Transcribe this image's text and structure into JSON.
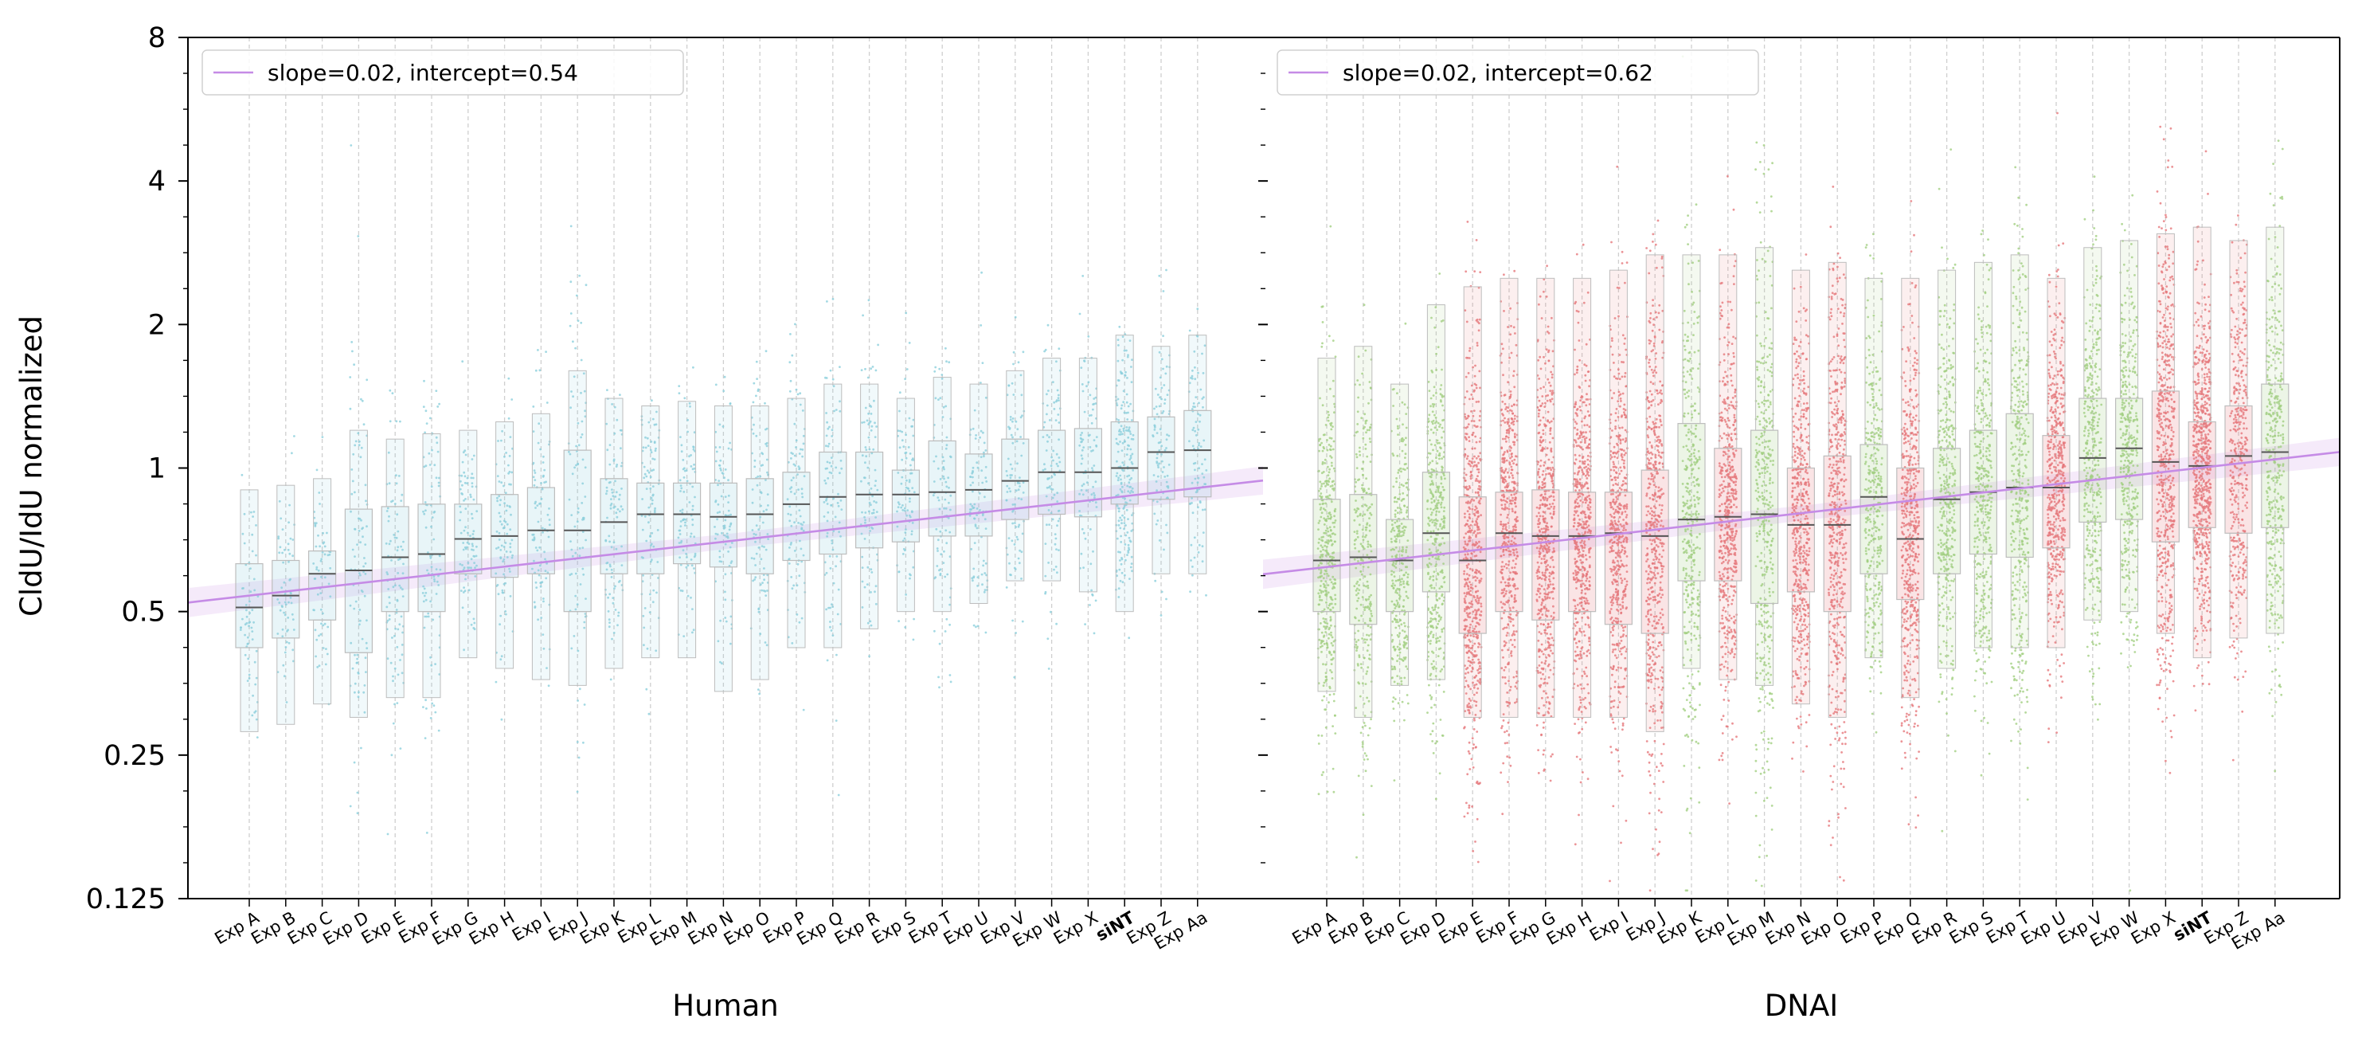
{
  "figure": {
    "ylabel": "CldU/IdU normalized"
  },
  "chart_data": [
    {
      "type": "box",
      "panel": "left",
      "xlabel": "Human",
      "y_scale": "log2",
      "ylim": [
        0.125,
        8
      ],
      "y_ticks": [
        0.125,
        0.25,
        0.5,
        1,
        2,
        4,
        8
      ],
      "y_tick_labels": [
        "0.125",
        "0.25",
        "0.5",
        "1",
        "2",
        "4",
        "8"
      ],
      "grid": "vertical dashed",
      "legend_position": "top-left",
      "highlight_category": "siNT",
      "highlight_color": "#f0954f",
      "categories": [
        "Exp A",
        "Exp B",
        "Exp C",
        "Exp D",
        "Exp E",
        "Exp F",
        "Exp G",
        "Exp H",
        "Exp I",
        "Exp J",
        "Exp K",
        "Exp L",
        "Exp M",
        "Exp N",
        "Exp O",
        "Exp P",
        "Exp Q",
        "Exp R",
        "Exp S",
        "Exp T",
        "Exp U",
        "Exp V",
        "Exp W",
        "Exp X",
        "siNT",
        "Exp Z",
        "Exp Aa"
      ],
      "medians": [
        0.51,
        0.54,
        0.6,
        0.61,
        0.65,
        0.66,
        0.71,
        0.72,
        0.74,
        0.74,
        0.77,
        0.8,
        0.8,
        0.79,
        0.8,
        0.84,
        0.87,
        0.88,
        0.88,
        0.89,
        0.9,
        0.94,
        0.98,
        0.98,
        1.0,
        1.08,
        1.09
      ],
      "q1": [
        0.42,
        0.44,
        0.48,
        0.41,
        0.5,
        0.5,
        0.6,
        0.59,
        0.6,
        0.5,
        0.6,
        0.6,
        0.63,
        0.62,
        0.6,
        0.64,
        0.66,
        0.68,
        0.7,
        0.72,
        0.72,
        0.78,
        0.8,
        0.79,
        0.84,
        0.86,
        0.87
      ],
      "q3": [
        0.63,
        0.64,
        0.67,
        0.82,
        0.83,
        0.84,
        0.84,
        0.88,
        0.91,
        1.09,
        0.95,
        0.93,
        0.93,
        0.93,
        0.95,
        0.98,
        1.08,
        1.08,
        0.99,
        1.14,
        1.07,
        1.15,
        1.2,
        1.21,
        1.25,
        1.28,
        1.32
      ],
      "whisker_low": [
        0.28,
        0.29,
        0.32,
        0.3,
        0.33,
        0.33,
        0.4,
        0.38,
        0.36,
        0.35,
        0.38,
        0.4,
        0.4,
        0.34,
        0.36,
        0.42,
        0.42,
        0.46,
        0.5,
        0.5,
        0.52,
        0.58,
        0.58,
        0.55,
        0.5,
        0.6,
        0.6
      ],
      "whisker_high": [
        0.9,
        0.92,
        0.95,
        1.2,
        1.15,
        1.18,
        1.2,
        1.25,
        1.3,
        1.6,
        1.4,
        1.35,
        1.38,
        1.35,
        1.35,
        1.4,
        1.5,
        1.5,
        1.4,
        1.55,
        1.5,
        1.6,
        1.7,
        1.7,
        1.9,
        1.8,
        1.9
      ],
      "point_count": [
        60,
        60,
        60,
        90,
        90,
        90,
        90,
        90,
        90,
        90,
        90,
        90,
        90,
        90,
        90,
        90,
        90,
        90,
        90,
        90,
        90,
        90,
        90,
        90,
        200,
        90,
        90
      ],
      "color": "#8ccfdc",
      "fit": {
        "label": "slope=0.02, intercept=0.54",
        "slope": 0.02,
        "intercept": 0.54,
        "color": "#c58be6"
      }
    },
    {
      "type": "box",
      "panel": "right",
      "xlabel": "DNAI",
      "y_scale": "log2",
      "ylim": [
        0.125,
        8
      ],
      "grid": "vertical dashed",
      "legend_position": "top-left",
      "highlight_category": "siNT",
      "highlight_color": "#f0954f",
      "categories": [
        "Exp A",
        "Exp B",
        "Exp C",
        "Exp D",
        "Exp E",
        "Exp F",
        "Exp G",
        "Exp H",
        "Exp I",
        "Exp J",
        "Exp K",
        "Exp L",
        "Exp M",
        "Exp N",
        "Exp O",
        "Exp P",
        "Exp Q",
        "Exp R",
        "Exp S",
        "Exp T",
        "Exp U",
        "Exp V",
        "Exp W",
        "Exp X",
        "siNT",
        "Exp Z",
        "Exp Aa"
      ],
      "group": [
        "green",
        "green",
        "green",
        "green",
        "red",
        "red",
        "red",
        "red",
        "red",
        "red",
        "green",
        "red",
        "green",
        "red",
        "red",
        "green",
        "red",
        "green",
        "green",
        "green",
        "red",
        "green",
        "green",
        "red",
        "red",
        "red",
        "green"
      ],
      "medians": [
        0.64,
        0.65,
        0.64,
        0.73,
        0.64,
        0.73,
        0.72,
        0.72,
        0.73,
        0.72,
        0.78,
        0.79,
        0.8,
        0.76,
        0.76,
        0.87,
        0.71,
        0.86,
        0.89,
        0.91,
        0.91,
        1.05,
        1.1,
        1.03,
        1.01,
        1.06,
        1.08
      ],
      "q1": [
        0.5,
        0.47,
        0.5,
        0.55,
        0.45,
        0.5,
        0.48,
        0.5,
        0.47,
        0.45,
        0.58,
        0.58,
        0.52,
        0.55,
        0.5,
        0.6,
        0.53,
        0.6,
        0.66,
        0.65,
        0.68,
        0.77,
        0.78,
        0.7,
        0.75,
        0.73,
        0.75
      ],
      "q3": [
        0.86,
        0.88,
        0.78,
        0.98,
        0.87,
        0.89,
        0.9,
        0.89,
        0.89,
        0.99,
        1.24,
        1.1,
        1.2,
        1.0,
        1.06,
        1.12,
        1.0,
        1.1,
        1.2,
        1.3,
        1.17,
        1.4,
        1.4,
        1.45,
        1.25,
        1.35,
        1.5
      ],
      "whisker_low": [
        0.34,
        0.3,
        0.35,
        0.36,
        0.3,
        0.3,
        0.3,
        0.3,
        0.3,
        0.28,
        0.38,
        0.36,
        0.35,
        0.32,
        0.3,
        0.4,
        0.33,
        0.38,
        0.42,
        0.42,
        0.42,
        0.48,
        0.5,
        0.45,
        0.4,
        0.44,
        0.45
      ],
      "whisker_high": [
        1.7,
        1.8,
        1.5,
        2.2,
        2.4,
        2.5,
        2.5,
        2.5,
        2.6,
        2.8,
        2.8,
        2.8,
        2.9,
        2.6,
        2.7,
        2.5,
        2.5,
        2.6,
        2.7,
        2.8,
        2.5,
        2.9,
        3.0,
        3.1,
        3.2,
        3.0,
        3.2
      ],
      "point_count": [
        380,
        260,
        300,
        380,
        540,
        480,
        520,
        520,
        500,
        520,
        360,
        520,
        380,
        520,
        520,
        340,
        520,
        380,
        380,
        380,
        520,
        380,
        380,
        560,
        640,
        380,
        380
      ],
      "colors": {
        "green": "#a2cf82",
        "red": "#e6787c"
      },
      "fit": {
        "label": "slope=0.02, intercept=0.62",
        "slope": 0.02,
        "intercept": 0.62,
        "color": "#c58be6"
      }
    }
  ]
}
